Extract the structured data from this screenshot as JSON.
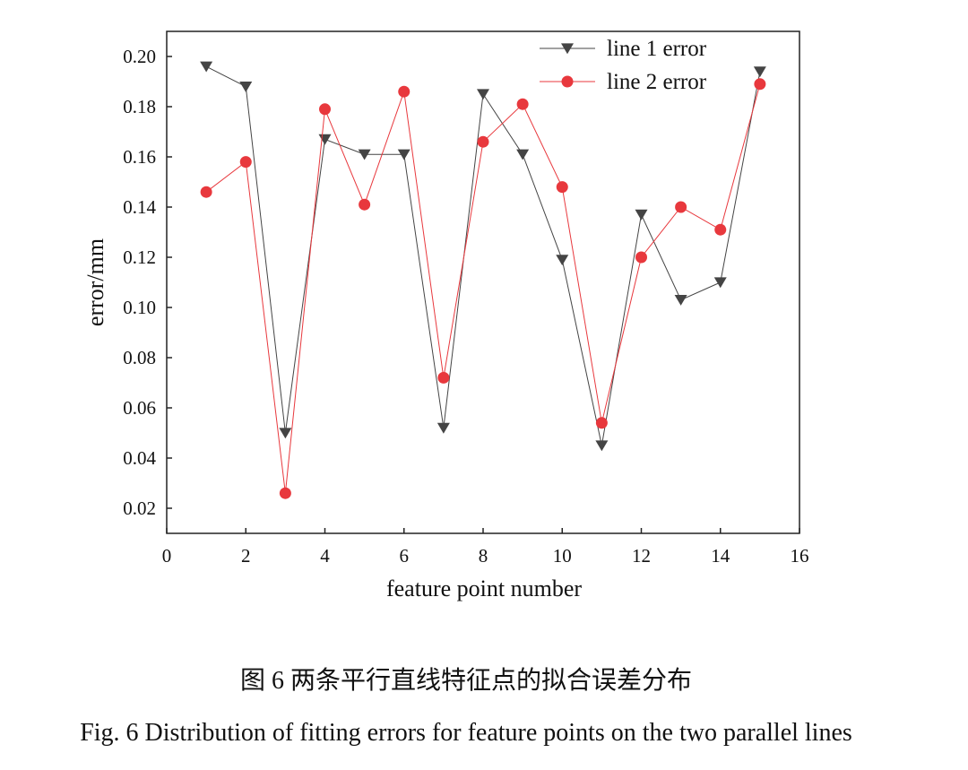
{
  "chart_data": {
    "type": "line",
    "xlabel": "feature point number",
    "ylabel": "error/mm",
    "x": [
      1,
      2,
      3,
      4,
      5,
      6,
      7,
      8,
      9,
      10,
      11,
      12,
      13,
      14,
      15
    ],
    "series": [
      {
        "name": "line 1 error",
        "color": "#444444",
        "marker": "triangle-down",
        "values": [
          0.196,
          0.188,
          0.05,
          0.167,
          0.161,
          0.161,
          0.052,
          0.185,
          0.161,
          0.119,
          0.045,
          0.137,
          0.103,
          0.11,
          0.194
        ]
      },
      {
        "name": "line 2 error",
        "color": "#e8383d",
        "marker": "circle",
        "values": [
          0.146,
          0.158,
          0.026,
          0.179,
          0.141,
          0.186,
          0.072,
          0.166,
          0.181,
          0.148,
          0.054,
          0.12,
          0.14,
          0.131,
          0.189
        ]
      }
    ],
    "xlim": [
      0,
      16
    ],
    "xticks": [
      0,
      2,
      4,
      6,
      8,
      10,
      12,
      14,
      16
    ],
    "ylim": [
      0.01,
      0.21
    ],
    "yticks": [
      0.02,
      0.04,
      0.06,
      0.08,
      {
        "value": 0.1,
        "label": "0.10"
      },
      0.12,
      0.14,
      0.16,
      0.18,
      {
        "value": 0.2,
        "label": "0.20"
      }
    ],
    "grid": false,
    "legend": "upper right"
  },
  "figure": {
    "caption_zh": "图 6  两条平行直线特征点的拟合误差分布",
    "caption_en": "Fig. 6 Distribution of fitting errors for feature points on the two parallel lines"
  }
}
